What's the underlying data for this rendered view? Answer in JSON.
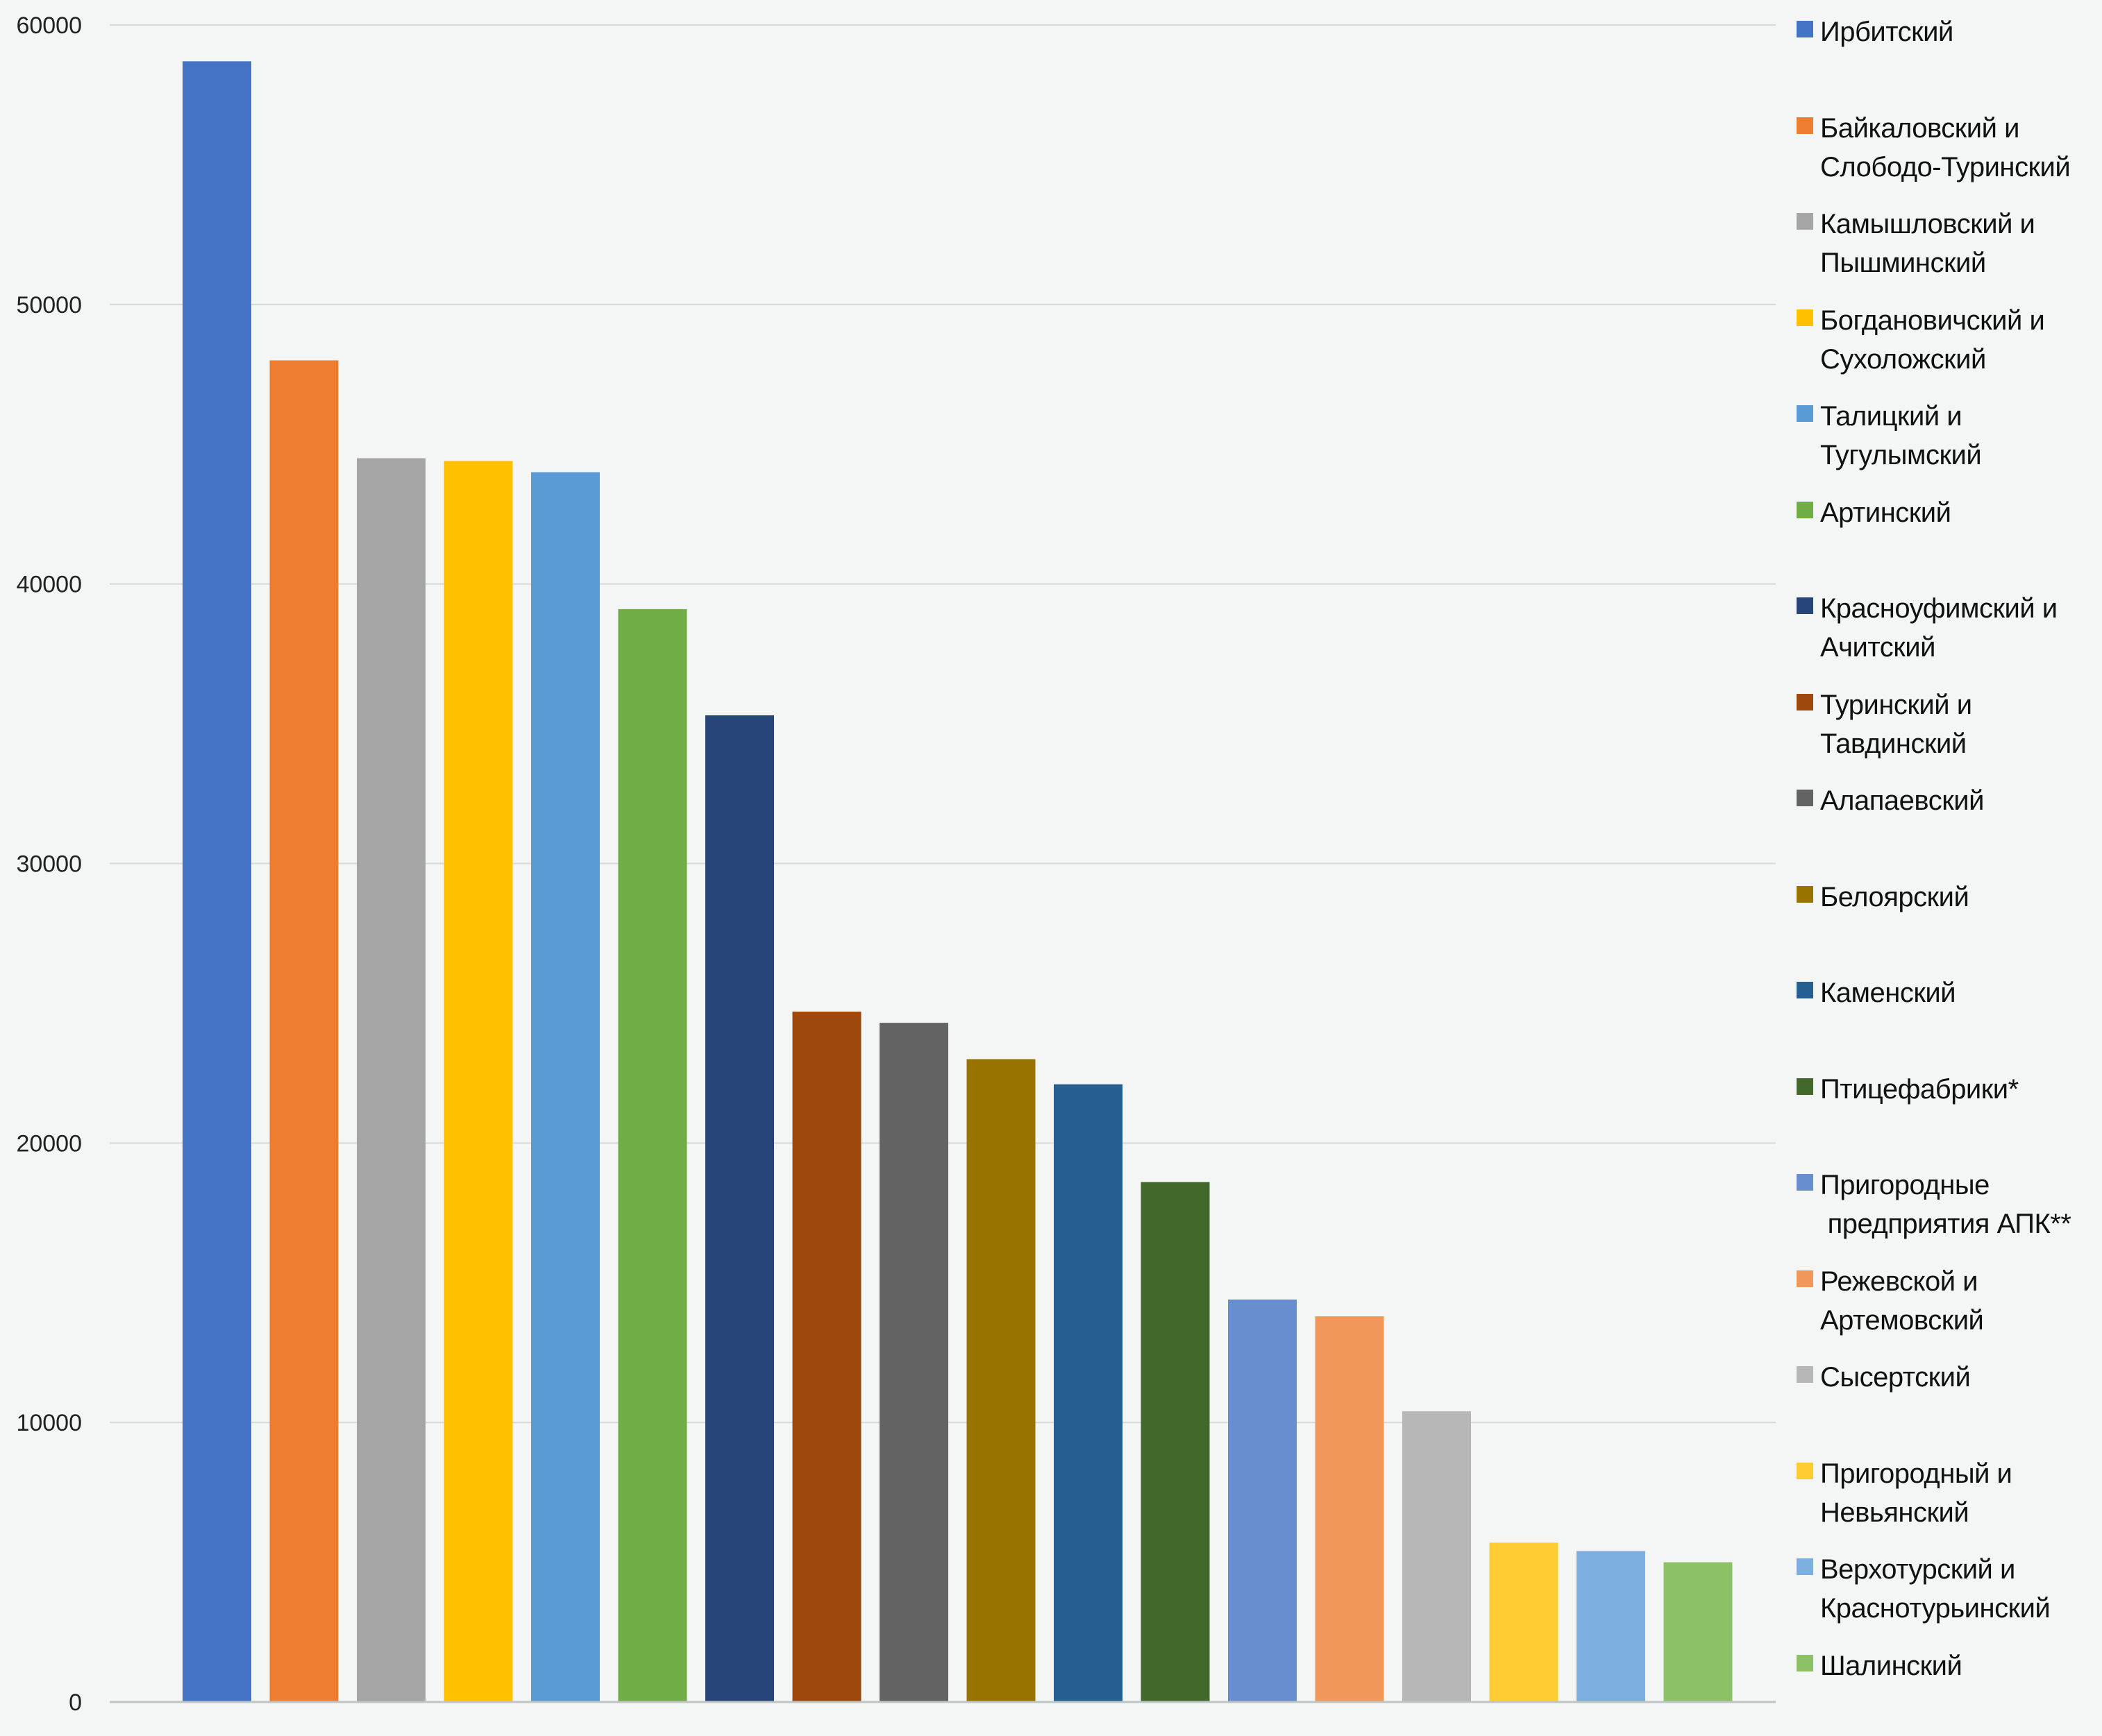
{
  "chart_data": {
    "type": "bar",
    "title": "",
    "xlabel": "",
    "ylabel": "",
    "ylim": [
      0,
      60000
    ],
    "yticks": [
      "0",
      "10000",
      "20000",
      "30000",
      "40000",
      "50000",
      "60000"
    ],
    "grid": true,
    "legend_position": "right",
    "categories": [
      "Ирбитский",
      "Байкаловский и\nСлободо-Туринский",
      "Камышловский и\nПышминский",
      "Богдановичский и\nСухоложский",
      "Талицкий и\nТугулымский",
      "Артинский",
      "Красноуфимский и\nАчитский",
      "Туринский и\nТавдинский",
      "Алапаевский",
      "Белоярский",
      "Каменский",
      "Птицефабрики*",
      "Пригородные\n предприятия АПК**",
      "Режевской и\nАртемовский",
      "Сысертский",
      "Пригородный и\nНевьянский",
      "Верхотурский и\nКраснотурьинский",
      "Шалинский"
    ],
    "values": [
      58700,
      48000,
      44500,
      44400,
      44000,
      39100,
      35300,
      24700,
      24300,
      23000,
      22100,
      18600,
      14400,
      13800,
      10400,
      5700,
      5400,
      5000
    ],
    "colors": [
      "#4472c4",
      "#ed7d31",
      "#a5a5a5",
      "#ffc000",
      "#5b9bd5",
      "#70ad47",
      "#264478",
      "#9e480e",
      "#636363",
      "#997300",
      "#255e91",
      "#43682b",
      "#698ed0",
      "#f1975a",
      "#b7b7b7",
      "#ffcd33",
      "#7cafdd",
      "#8cc168"
    ]
  }
}
